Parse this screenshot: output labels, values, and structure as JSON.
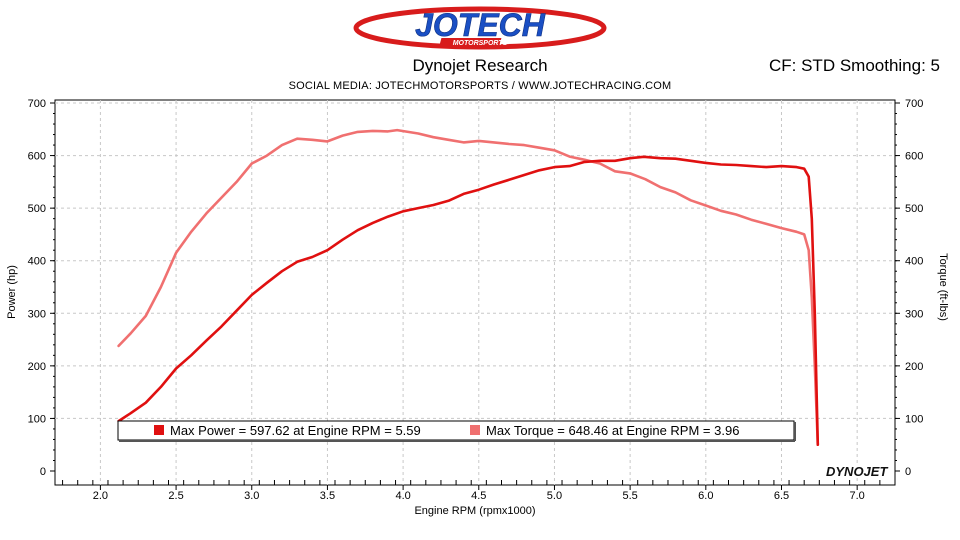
{
  "header": {
    "logo_text": "JOTECH",
    "logo_subtext": "MOTORSPORTS",
    "title": "Dynojet Research",
    "correction": "CF: STD Smoothing: 5",
    "social": "SOCIAL MEDIA: JOTECHMOTORSPORTS    /     WWW.JOTECHRACING.COM",
    "brand": "DYNOJET"
  },
  "colors": {
    "power": "#e01010",
    "torque": "#f07070",
    "logo_blue": "#1a4fc4",
    "logo_red": "#d81c1c"
  },
  "chart_data": {
    "type": "line",
    "title": "Dynojet Research",
    "xlabel": "Engine RPM (rpmx1000)",
    "ylabel": "Power (hp)",
    "y2label": "Torque (ft-lbs)",
    "xlim": [
      1.7,
      7.25
    ],
    "ylim": [
      0,
      700
    ],
    "xticks": [
      "2.0",
      "2.5",
      "3.0",
      "3.5",
      "4.0",
      "4.5",
      "5.0",
      "5.5",
      "6.0",
      "6.5",
      "7.0"
    ],
    "yticks": [
      "0",
      "100",
      "200",
      "300",
      "400",
      "500",
      "600",
      "700"
    ],
    "grid": true,
    "series": [
      {
        "name": "Power",
        "axis": "left",
        "x": [
          2.12,
          2.2,
          2.3,
          2.4,
          2.5,
          2.6,
          2.7,
          2.8,
          2.9,
          3.0,
          3.1,
          3.2,
          3.3,
          3.4,
          3.5,
          3.6,
          3.7,
          3.8,
          3.9,
          4.0,
          4.1,
          4.2,
          4.3,
          4.4,
          4.5,
          4.6,
          4.7,
          4.8,
          4.9,
          5.0,
          5.1,
          5.2,
          5.3,
          5.4,
          5.5,
          5.59,
          5.7,
          5.8,
          5.9,
          6.0,
          6.1,
          6.2,
          6.3,
          6.4,
          6.5,
          6.6,
          6.65,
          6.68,
          6.7,
          6.72,
          6.74
        ],
        "y": [
          95,
          110,
          130,
          160,
          195,
          220,
          248,
          275,
          305,
          335,
          358,
          380,
          398,
          407,
          420,
          440,
          458,
          472,
          484,
          494,
          500,
          506,
          514,
          527,
          535,
          545,
          554,
          563,
          572,
          578,
          580,
          588,
          590,
          590,
          595,
          597.62,
          595,
          594,
          590,
          586,
          583,
          582,
          580,
          578,
          580,
          578,
          575,
          560,
          480,
          300,
          50
        ]
      },
      {
        "name": "Torque",
        "axis": "right",
        "x": [
          2.12,
          2.2,
          2.3,
          2.4,
          2.5,
          2.6,
          2.7,
          2.8,
          2.9,
          3.0,
          3.1,
          3.2,
          3.3,
          3.4,
          3.5,
          3.6,
          3.7,
          3.8,
          3.9,
          3.96,
          4.1,
          4.2,
          4.3,
          4.4,
          4.5,
          4.6,
          4.7,
          4.8,
          4.9,
          5.0,
          5.1,
          5.2,
          5.3,
          5.4,
          5.5,
          5.6,
          5.7,
          5.8,
          5.9,
          6.0,
          6.1,
          6.2,
          6.3,
          6.4,
          6.5,
          6.6,
          6.65,
          6.68,
          6.7,
          6.72,
          6.74
        ],
        "y": [
          238,
          262,
          295,
          350,
          415,
          455,
          490,
          520,
          550,
          585,
          600,
          620,
          632,
          630,
          627,
          638,
          645,
          647,
          646,
          648.46,
          642,
          635,
          630,
          625,
          628,
          625,
          622,
          620,
          615,
          610,
          598,
          592,
          585,
          570,
          566,
          555,
          540,
          530,
          515,
          505,
          495,
          488,
          478,
          470,
          462,
          455,
          450,
          420,
          330,
          200,
          50
        ]
      }
    ],
    "legend": {
      "placement": "bottom-center",
      "entries": [
        {
          "label": "Max Power = 597.62 at Engine RPM = 5.59",
          "series": "Power"
        },
        {
          "label": "Max Torque = 648.46 at Engine RPM = 3.96",
          "series": "Torque"
        }
      ]
    }
  }
}
